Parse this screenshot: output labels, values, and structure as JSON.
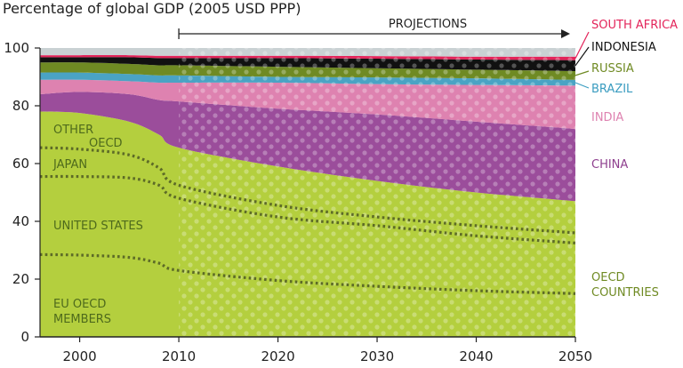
{
  "chart_data": {
    "type": "area",
    "title": "",
    "ylabel": "Percentage of global GDP (2005 USD PPP)",
    "xlabel": "",
    "xlim": [
      1996,
      2050
    ],
    "ylim": [
      0,
      100
    ],
    "xticks": [
      2000,
      2010,
      2020,
      2030,
      2040,
      2050
    ],
    "yticks": [
      0,
      20,
      40,
      60,
      80,
      100
    ],
    "projections_label": "PROJECTIONS",
    "projections_range": [
      2010,
      2050
    ],
    "x": [
      1996,
      2000,
      2005,
      2008,
      2010,
      2020,
      2030,
      2040,
      2050
    ],
    "boundaries": {
      "eu_top": [
        28.5,
        28.3,
        27.5,
        25.5,
        23,
        19.5,
        17.5,
        16,
        15
      ],
      "us_top": [
        55.5,
        55.5,
        55,
        52.5,
        48,
        41.5,
        38.5,
        35,
        32.5
      ],
      "japan_top": [
        65.5,
        65,
        63,
        58.5,
        52.5,
        45.5,
        41.5,
        38.5,
        36
      ],
      "oecd_top": [
        78,
        77.5,
        74.5,
        70,
        65.5,
        59,
        54,
        50,
        47
      ],
      "china_top": [
        84,
        84.8,
        84,
        82,
        81.5,
        79,
        77,
        74.5,
        72
      ],
      "india_top": [
        89,
        89,
        88.5,
        88,
        88,
        88,
        87.5,
        87.2,
        87
      ],
      "brazil_top": [
        91.5,
        91.5,
        91,
        90.5,
        90.5,
        90,
        89.8,
        89.5,
        89
      ],
      "russia_top": [
        95,
        95,
        94.5,
        94,
        94,
        93.5,
        93,
        92.5,
        92
      ],
      "indonesia_top": [
        96.8,
        96.8,
        96.8,
        96.5,
        96.5,
        96.5,
        96.3,
        96,
        95.8
      ],
      "safrica_top": [
        97.5,
        97.5,
        97.5,
        97.3,
        97.3,
        97.3,
        97.2,
        97,
        97
      ],
      "total": [
        100,
        100,
        100,
        100,
        100,
        100,
        100,
        100,
        100
      ]
    },
    "series": [
      {
        "name": "OECD COUNTRIES",
        "lower": null,
        "upper": "oecd_top",
        "color": "#b4cf3e"
      },
      {
        "name": "CHINA",
        "lower": "oecd_top",
        "upper": "china_top",
        "color": "#9b4d9b"
      },
      {
        "name": "INDIA",
        "lower": "china_top",
        "upper": "india_top",
        "color": "#de82b0"
      },
      {
        "name": "BRAZIL",
        "lower": "india_top",
        "upper": "brazil_top",
        "color": "#4aa3c4"
      },
      {
        "name": "RUSSIA",
        "lower": "brazil_top",
        "upper": "russia_top",
        "color": "#6f8a23"
      },
      {
        "name": "INDONESIA",
        "lower": "russia_top",
        "upper": "indonesia_top",
        "color": "#111111"
      },
      {
        "name": "SOUTH AFRICA",
        "lower": "indonesia_top",
        "upper": "safrica_top",
        "color": "#e3245a"
      },
      {
        "name": "",
        "lower": "safrica_top",
        "upper": "total",
        "color": "#c9d1d3"
      }
    ],
    "dotted_lines": [
      "eu_top",
      "us_top",
      "japan_top"
    ],
    "legend": [
      {
        "label": "SOUTH AFRICA",
        "color": "#e3245a"
      },
      {
        "label": "INDONESIA",
        "color": "#111111"
      },
      {
        "label": "RUSSIA",
        "color": "#6f8a23"
      },
      {
        "label": "BRAZIL",
        "color": "#3a9cc0"
      },
      {
        "label": "INDIA",
        "color": "#de82b0"
      },
      {
        "label": "CHINA",
        "color": "#8e3f8e"
      },
      {
        "label": "OECD",
        "color": "#6f8a23"
      },
      {
        "label": "COUNTRIES",
        "color": "#6f8a23"
      }
    ],
    "inner_labels": [
      "OTHER",
      "OECD",
      "JAPAN",
      "UNITED STATES",
      "EU OECD",
      "MEMBERS"
    ]
  }
}
